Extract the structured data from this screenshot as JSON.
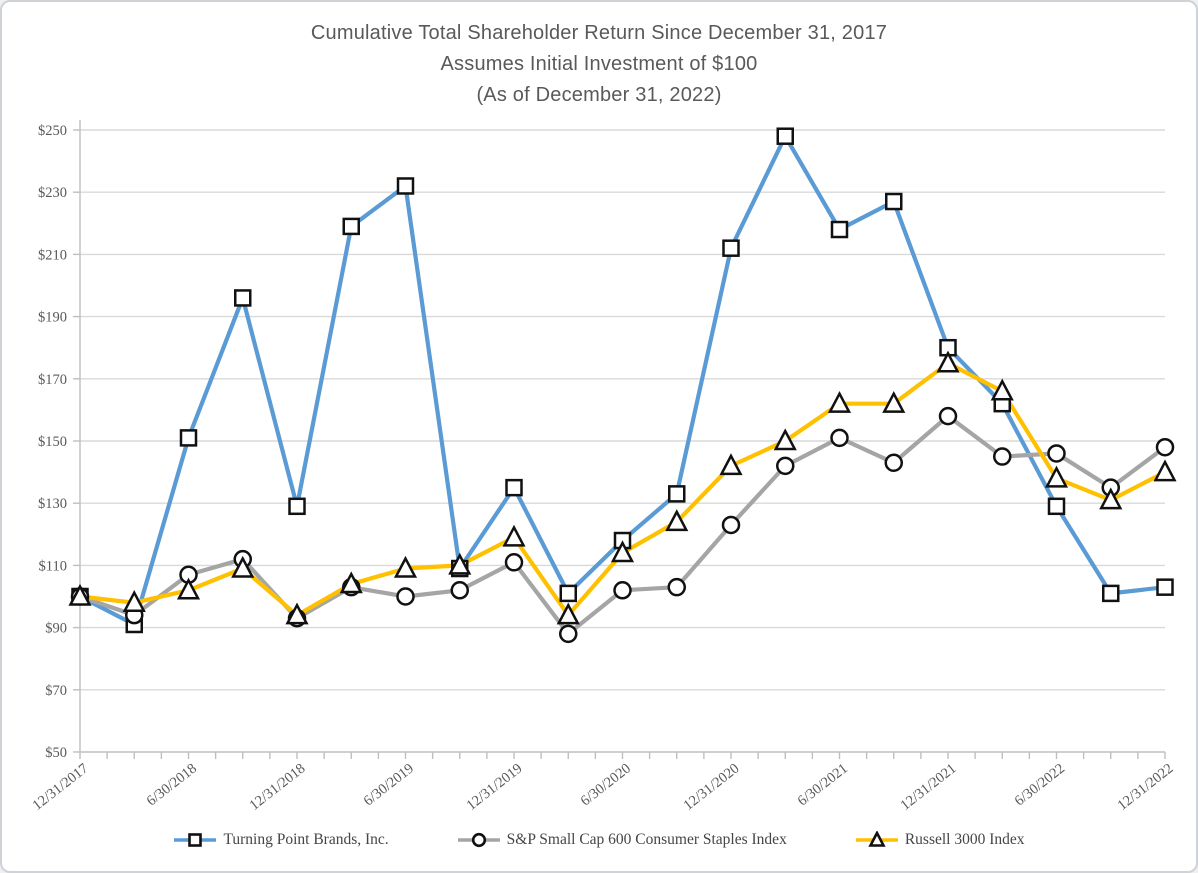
{
  "title": {
    "line1": "Cumulative Total Shareholder Return Since December 31, 2017",
    "line2": "Assumes Initial Investment of $100",
    "line3": "(As of December 31, 2022)"
  },
  "chart_data": {
    "type": "line",
    "title": "Cumulative Total Shareholder Return Since December 31, 2017 — Assumes Initial Investment of $100 (As of December 31, 2022)",
    "categories": [
      "12/31/2017",
      "3/31/2018",
      "6/30/2018",
      "9/30/2018",
      "12/31/2018",
      "3/31/2019",
      "6/30/2019",
      "9/30/2019",
      "12/31/2019",
      "3/31/2020",
      "6/30/2020",
      "9/30/2020",
      "12/31/2020",
      "3/31/2021",
      "6/30/2021",
      "9/30/2021",
      "12/31/2021",
      "3/31/2022",
      "6/30/2022",
      "9/30/2022",
      "12/31/2022"
    ],
    "x_axis_labeled_ticks": [
      "12/31/2017",
      "6/30/2018",
      "12/31/2018",
      "6/30/2019",
      "12/31/2019",
      "6/30/2020",
      "12/31/2020",
      "6/30/2021",
      "12/31/2021",
      "6/30/2022",
      "12/31/2022"
    ],
    "series": [
      {
        "name": "Turning Point Brands, Inc.",
        "color": "#5B9BD5",
        "marker": "square",
        "values": [
          100,
          91,
          151,
          196,
          129,
          219,
          232,
          109,
          135,
          101,
          118,
          133,
          212,
          248,
          218,
          227,
          180,
          162,
          129,
          101,
          103
        ]
      },
      {
        "name": "S&P Small Cap 600 Consumer Staples Index",
        "color": "#A5A5A5",
        "marker": "circle",
        "values": [
          100,
          94,
          107,
          112,
          93,
          103,
          100,
          102,
          111,
          88,
          102,
          103,
          123,
          142,
          151,
          143,
          158,
          145,
          146,
          135,
          148
        ]
      },
      {
        "name": "Russell 3000 Index",
        "color": "#FFC000",
        "marker": "triangle",
        "values": [
          100,
          98,
          102,
          109,
          94,
          104,
          109,
          110,
          119,
          94,
          114,
          124,
          142,
          150,
          162,
          162,
          175,
          166,
          138,
          131,
          140
        ]
      }
    ],
    "y_axis": {
      "min": 50,
      "max": 250,
      "step": 20,
      "tick_labels": [
        "$50",
        "$70",
        "$90",
        "$110",
        "$130",
        "$150",
        "$170",
        "$190",
        "$210",
        "$230",
        "$250"
      ]
    },
    "grid": true,
    "legend_position": "bottom",
    "colors": {
      "gridline": "#D9D9D9",
      "axis": "#BFBFBF",
      "marker_stroke": "#111111",
      "text": "#595959"
    }
  }
}
